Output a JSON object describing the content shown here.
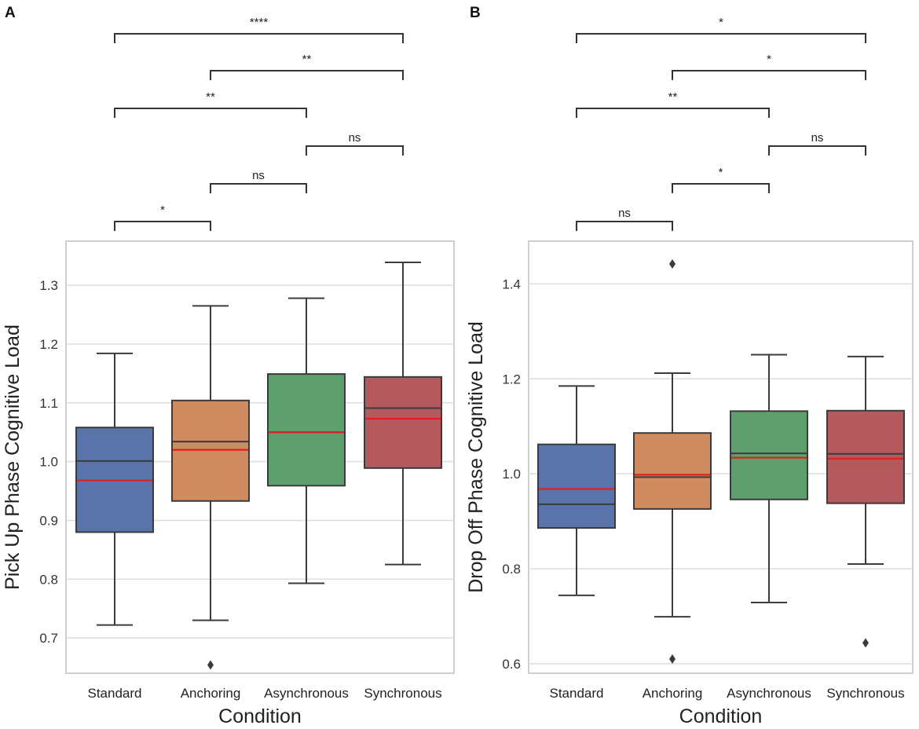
{
  "chart_data": [
    {
      "type": "box",
      "panel_label": "A",
      "xlabel": "Condition",
      "ylabel": "Pick Up Phase Cognitive Load",
      "categories": [
        "Standard",
        "Anchoring",
        "Asynchronous",
        "Synchronous"
      ],
      "colors": [
        "#5874a8",
        "#cf8b60",
        "#5f9e6e",
        "#b45a5f"
      ],
      "mean_color": "#e0201e",
      "ylim": [
        0.64,
        1.375
      ],
      "yticks": [
        0.7,
        0.8,
        0.9,
        1.0,
        1.1,
        1.2,
        1.3
      ],
      "ytick_labels": [
        "0.7",
        "0.8",
        "0.9",
        "1.0",
        "1.1",
        "1.2",
        "1.3"
      ],
      "boxes": [
        {
          "name": "Standard",
          "whislo": 0.722,
          "q1": 0.88,
          "med": 1.001,
          "q3": 1.058,
          "whishi": 1.184,
          "mean": 0.968,
          "fliers": []
        },
        {
          "name": "Anchoring",
          "whislo": 0.73,
          "q1": 0.933,
          "med": 1.034,
          "q3": 1.104,
          "whishi": 1.265,
          "mean": 1.02,
          "fliers": [
            0.654
          ]
        },
        {
          "name": "Asynchronous",
          "whislo": 0.793,
          "q1": 0.959,
          "med": 1.05,
          "q3": 1.149,
          "whishi": 1.278,
          "mean": 1.05,
          "fliers": []
        },
        {
          "name": "Synchronous",
          "whislo": 0.825,
          "q1": 0.989,
          "med": 1.091,
          "q3": 1.144,
          "whishi": 1.339,
          "mean": 1.073,
          "fliers": []
        }
      ],
      "significance": [
        {
          "from": 0,
          "to": 3,
          "label": "****"
        },
        {
          "from": 1,
          "to": 3,
          "label": "**"
        },
        {
          "from": 0,
          "to": 2,
          "label": "**"
        },
        {
          "from": 2,
          "to": 3,
          "label": "ns"
        },
        {
          "from": 1,
          "to": 2,
          "label": "ns"
        },
        {
          "from": 0,
          "to": 1,
          "label": "*"
        }
      ]
    },
    {
      "type": "box",
      "panel_label": "B",
      "xlabel": "Condition",
      "ylabel": "Drop Off Phase Cognitive Load",
      "categories": [
        "Standard",
        "Anchoring",
        "Asynchronous",
        "Synchronous"
      ],
      "colors": [
        "#5874a8",
        "#cf8b60",
        "#5f9e6e",
        "#b45a5f"
      ],
      "mean_color": "#e0201e",
      "ylim": [
        0.58,
        1.49
      ],
      "yticks": [
        0.6,
        0.8,
        1.0,
        1.2,
        1.4
      ],
      "ytick_labels": [
        "0.6",
        "0.8",
        "1.0",
        "1.2",
        "1.4"
      ],
      "boxes": [
        {
          "name": "Standard",
          "whislo": 0.744,
          "q1": 0.886,
          "med": 0.936,
          "q3": 1.062,
          "whishi": 1.185,
          "mean": 0.968,
          "fliers": []
        },
        {
          "name": "Anchoring",
          "whislo": 0.699,
          "q1": 0.926,
          "med": 0.993,
          "q3": 1.086,
          "whishi": 1.212,
          "mean": 0.998,
          "fliers": [
            1.442,
            0.61
          ]
        },
        {
          "name": "Asynchronous",
          "whislo": 0.729,
          "q1": 0.946,
          "med": 1.043,
          "q3": 1.132,
          "whishi": 1.251,
          "mean": 1.034,
          "fliers": []
        },
        {
          "name": "Synchronous",
          "whislo": 0.81,
          "q1": 0.938,
          "med": 1.042,
          "q3": 1.133,
          "whishi": 1.247,
          "mean": 1.032,
          "fliers": [
            0.644
          ]
        }
      ],
      "significance": [
        {
          "from": 0,
          "to": 3,
          "label": "*"
        },
        {
          "from": 1,
          "to": 3,
          "label": "*"
        },
        {
          "from": 0,
          "to": 2,
          "label": "**"
        },
        {
          "from": 2,
          "to": 3,
          "label": "ns"
        },
        {
          "from": 1,
          "to": 2,
          "label": "*"
        },
        {
          "from": 0,
          "to": 1,
          "label": "ns"
        }
      ]
    }
  ]
}
